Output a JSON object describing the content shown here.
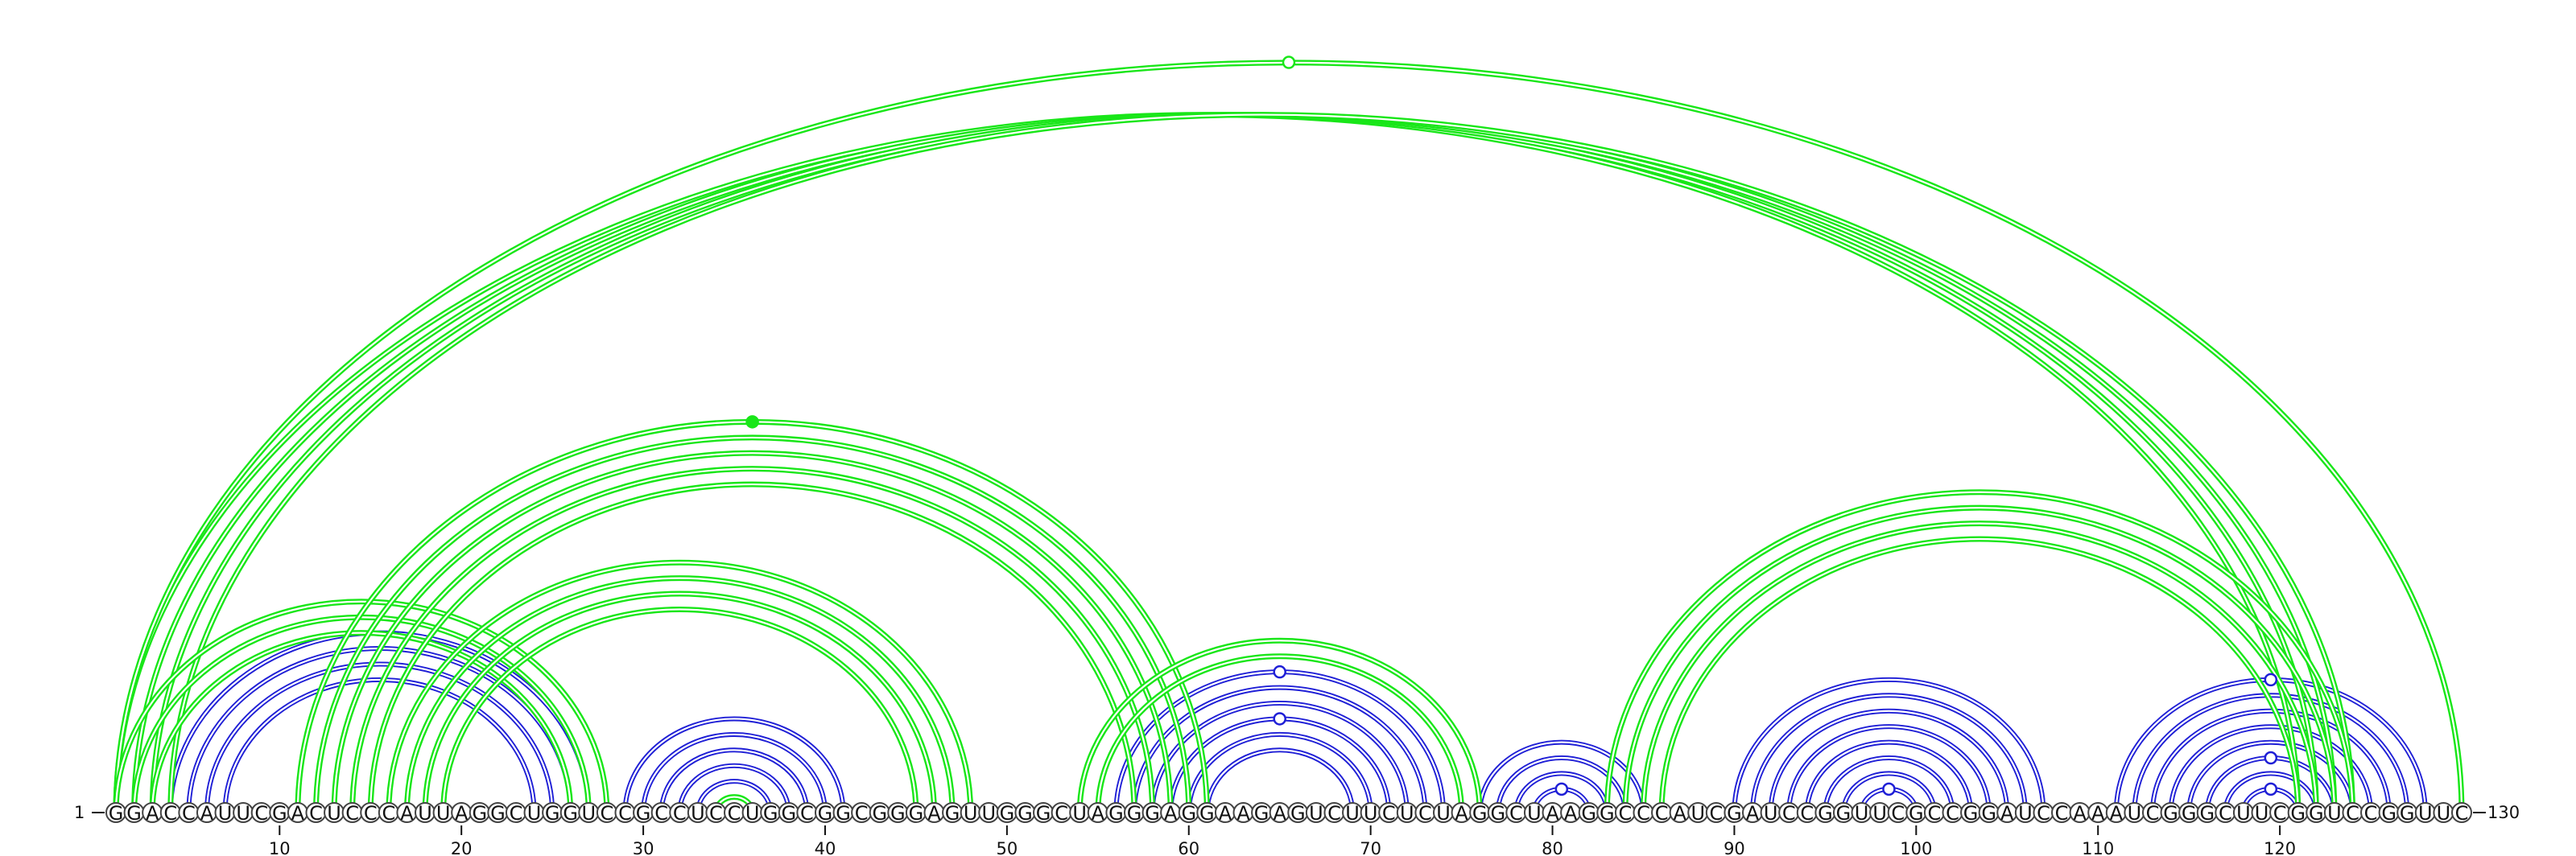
{
  "diagram": {
    "type": "rna-arc-diagram",
    "sequence": "GGACCAUUCGACUCCCAUUAGGCUGGUCCGCCUCCUGGCGGCGGGAGUUGGGCUAGGGAGGAAGAGUCUUCUCUAGGCUAAGGCCCAUCGAUCCGGUUCGCCGGAUCCAAAUCGGGCUUCGGUCCGGUUC",
    "start_label": "1",
    "end_label": "130",
    "ticks": [
      "10",
      "20",
      "30",
      "40",
      "50",
      "60",
      "70",
      "80",
      "90",
      "100",
      "110",
      "120"
    ],
    "colors": {
      "blue": "#1f1fd6",
      "green": "#19e619"
    },
    "arcs": [
      {
        "i": 4,
        "j": 27,
        "color": "blue"
      },
      {
        "i": 5,
        "j": 26,
        "color": "blue"
      },
      {
        "i": 6,
        "j": 25,
        "color": "blue"
      },
      {
        "i": 7,
        "j": 24,
        "color": "blue"
      },
      {
        "i": 29,
        "j": 41,
        "color": "blue"
      },
      {
        "i": 30,
        "j": 40,
        "color": "blue"
      },
      {
        "i": 31,
        "j": 39,
        "color": "blue"
      },
      {
        "i": 32,
        "j": 38,
        "color": "blue"
      },
      {
        "i": 33,
        "j": 37,
        "color": "blue"
      },
      {
        "i": 56,
        "j": 74,
        "color": "blue"
      },
      {
        "i": 57,
        "j": 73,
        "color": "blue"
      },
      {
        "i": 58,
        "j": 72,
        "color": "blue"
      },
      {
        "i": 59,
        "j": 71,
        "color": "blue"
      },
      {
        "i": 60,
        "j": 70,
        "color": "blue"
      },
      {
        "i": 61,
        "j": 69,
        "color": "blue"
      },
      {
        "i": 76,
        "j": 85,
        "color": "blue"
      },
      {
        "i": 77,
        "j": 84,
        "color": "blue"
      },
      {
        "i": 78,
        "j": 83,
        "color": "blue"
      },
      {
        "i": 79,
        "j": 82,
        "color": "blue"
      },
      {
        "i": 90,
        "j": 107,
        "color": "blue"
      },
      {
        "i": 91,
        "j": 106,
        "color": "blue"
      },
      {
        "i": 92,
        "j": 105,
        "color": "blue"
      },
      {
        "i": 93,
        "j": 104,
        "color": "blue"
      },
      {
        "i": 94,
        "j": 103,
        "color": "blue"
      },
      {
        "i": 95,
        "j": 102,
        "color": "blue"
      },
      {
        "i": 96,
        "j": 101,
        "color": "blue"
      },
      {
        "i": 97,
        "j": 100,
        "color": "blue"
      },
      {
        "i": 111,
        "j": 128,
        "color": "blue"
      },
      {
        "i": 112,
        "j": 127,
        "color": "blue"
      },
      {
        "i": 113,
        "j": 126,
        "color": "blue"
      },
      {
        "i": 114,
        "j": 125,
        "color": "blue"
      },
      {
        "i": 115,
        "j": 124,
        "color": "blue"
      },
      {
        "i": 116,
        "j": 123,
        "color": "blue"
      },
      {
        "i": 117,
        "j": 122,
        "color": "blue"
      },
      {
        "i": 118,
        "j": 121,
        "color": "blue"
      },
      {
        "i": 1,
        "j": 121,
        "color": "green"
      },
      {
        "i": 2,
        "j": 122,
        "color": "green"
      },
      {
        "i": 3,
        "j": 123,
        "color": "green"
      },
      {
        "i": 4,
        "j": 124,
        "color": "green"
      },
      {
        "i": 1,
        "j": 130,
        "color": "green"
      },
      {
        "i": 1,
        "j": 28,
        "color": "green"
      },
      {
        "i": 2,
        "j": 27,
        "color": "green"
      },
      {
        "i": 3,
        "j": 26,
        "color": "green"
      },
      {
        "i": 11,
        "j": 61,
        "color": "green"
      },
      {
        "i": 12,
        "j": 60,
        "color": "green"
      },
      {
        "i": 13,
        "j": 59,
        "color": "green"
      },
      {
        "i": 14,
        "j": 58,
        "color": "green"
      },
      {
        "i": 15,
        "j": 57,
        "color": "green"
      },
      {
        "i": 16,
        "j": 48,
        "color": "green"
      },
      {
        "i": 17,
        "j": 47,
        "color": "green"
      },
      {
        "i": 18,
        "j": 46,
        "color": "green"
      },
      {
        "i": 19,
        "j": 45,
        "color": "green"
      },
      {
        "i": 34,
        "j": 36,
        "color": "green"
      },
      {
        "i": 54,
        "j": 76,
        "color": "green"
      },
      {
        "i": 55,
        "j": 75,
        "color": "green"
      },
      {
        "i": 83,
        "j": 124,
        "color": "green"
      },
      {
        "i": 84,
        "j": 123,
        "color": "green"
      },
      {
        "i": 85,
        "j": 122,
        "color": "green"
      },
      {
        "i": 86,
        "j": 121,
        "color": "green"
      }
    ],
    "loop_markers": [
      {
        "pos": 35,
        "color": "green",
        "filled": true
      },
      {
        "pos": 35.5,
        "color": "green",
        "filled": true,
        "on_arc": {
          "i": 11,
          "j": 61
        }
      },
      {
        "pos": 65,
        "color": "blue",
        "filled": false,
        "on_arc": {
          "i": 56,
          "j": 74
        },
        "level": 0.72
      },
      {
        "pos": 65,
        "color": "blue",
        "filled": false,
        "on_arc": {
          "i": 59,
          "j": 71
        },
        "level": 0.72
      },
      {
        "pos": 80.5,
        "color": "blue",
        "filled": false,
        "on_arc": {
          "i": 79,
          "j": 82
        }
      },
      {
        "pos": 98.5,
        "color": "blue",
        "filled": false,
        "on_arc": {
          "i": 97,
          "j": 100
        }
      },
      {
        "pos": 119.5,
        "color": "blue",
        "filled": false,
        "on_arc": {
          "i": 111,
          "j": 128
        }
      },
      {
        "pos": 119.5,
        "color": "blue",
        "filled": false,
        "on_arc": {
          "i": 116,
          "j": 123
        }
      },
      {
        "pos": 119.5,
        "color": "blue",
        "filled": false,
        "on_arc": {
          "i": 118,
          "j": 121
        }
      },
      {
        "pos": 65.5,
        "color": "green",
        "filled": false,
        "on_arc": {
          "i": 1,
          "j": 130
        }
      }
    ]
  }
}
